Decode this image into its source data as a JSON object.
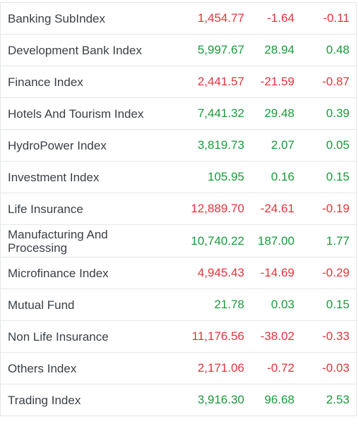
{
  "colors": {
    "positive": "#1a9a3a",
    "negative": "#e3343a",
    "text": "#3a3f44",
    "border": "#e3e6ea"
  },
  "rows": [
    {
      "name": "Banking SubIndex",
      "value": "1,454.77",
      "change": "-1.64",
      "percent": "-0.11",
      "trend": "down"
    },
    {
      "name": "Development Bank Index",
      "value": "5,997.67",
      "change": "28.94",
      "percent": "0.48",
      "trend": "up"
    },
    {
      "name": "Finance Index",
      "value": "2,441.57",
      "change": "-21.59",
      "percent": "-0.87",
      "trend": "down"
    },
    {
      "name": "Hotels And Tourism Index",
      "value": "7,441.32",
      "change": "29.48",
      "percent": "0.39",
      "trend": "up"
    },
    {
      "name": "HydroPower Index",
      "value": "3,819.73",
      "change": "2.07",
      "percent": "0.05",
      "trend": "up"
    },
    {
      "name": "Investment Index",
      "value": "105.95",
      "change": "0.16",
      "percent": "0.15",
      "trend": "up"
    },
    {
      "name": "Life Insurance",
      "value": "12,889.70",
      "change": "-24.61",
      "percent": "-0.19",
      "trend": "down"
    },
    {
      "name": "Manufacturing And Processing",
      "value": "10,740.22",
      "change": "187.00",
      "percent": "1.77",
      "trend": "up"
    },
    {
      "name": "Microfinance Index",
      "value": "4,945.43",
      "change": "-14.69",
      "percent": "-0.29",
      "trend": "down"
    },
    {
      "name": "Mutual Fund",
      "value": "21.78",
      "change": "0.03",
      "percent": "0.15",
      "trend": "up"
    },
    {
      "name": "Non Life Insurance",
      "value": "11,176.56",
      "change": "-38.02",
      "percent": "-0.33",
      "trend": "down"
    },
    {
      "name": "Others Index",
      "value": "2,171.06",
      "change": "-0.72",
      "percent": "-0.03",
      "trend": "down"
    },
    {
      "name": "Trading Index",
      "value": "3,916.30",
      "change": "96.68",
      "percent": "2.53",
      "trend": "up"
    }
  ]
}
